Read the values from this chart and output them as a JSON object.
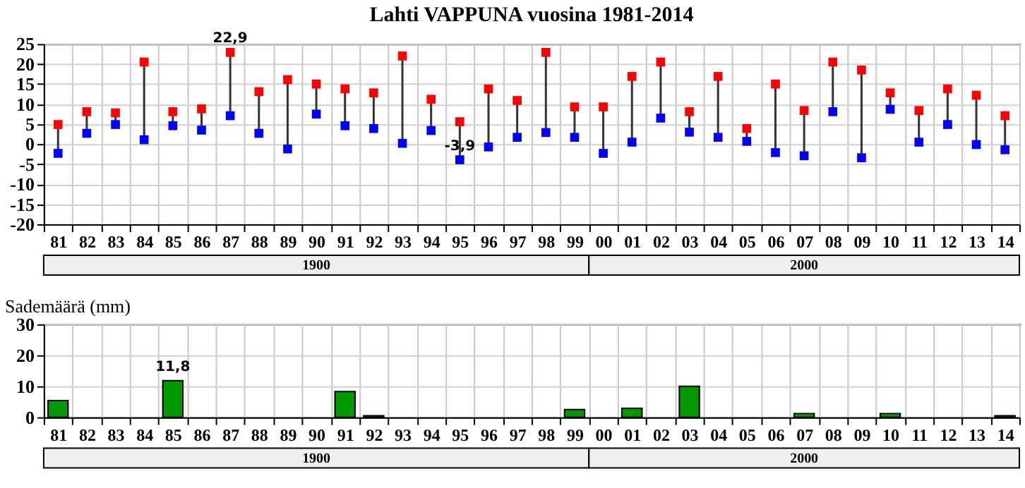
{
  "chart_data": [
    {
      "type": "scatter",
      "title": "Lahti VAPPUNA vuosina 1981-2014",
      "categories": [
        "81",
        "82",
        "83",
        "84",
        "85",
        "86",
        "87",
        "88",
        "89",
        "90",
        "91",
        "92",
        "93",
        "94",
        "95",
        "96",
        "97",
        "98",
        "99",
        "00",
        "01",
        "02",
        "03",
        "04",
        "05",
        "06",
        "07",
        "08",
        "09",
        "10",
        "11",
        "12",
        "13",
        "14"
      ],
      "series": [
        {
          "color": "#ff0000",
          "values": [
            4.9,
            8.1,
            7.8,
            20.5,
            8.1,
            8.8,
            22.9,
            13.1,
            16.1,
            15.0,
            13.8,
            12.8,
            22.0,
            11.2,
            5.6,
            13.8,
            10.9,
            22.9,
            9.3,
            9.3,
            16.9,
            20.5,
            8.1,
            16.9,
            3.9,
            15.0,
            8.4,
            20.5,
            18.5,
            12.8,
            8.4,
            13.8,
            12.2,
            7.1
          ]
        },
        {
          "color": "#0000ff",
          "values": [
            -2.3,
            2.7,
            4.9,
            1.1,
            4.6,
            3.5,
            7.1,
            2.7,
            -1.2,
            7.5,
            4.6,
            3.9,
            0.2,
            3.4,
            -3.9,
            -0.7,
            1.7,
            2.9,
            1.7,
            -2.3,
            0.5,
            6.5,
            3.0,
            1.7,
            0.7,
            -2.1,
            -2.9,
            8.1,
            -3.4,
            8.7,
            0.5,
            4.9,
            -0.1,
            -1.4
          ]
        }
      ],
      "marker": "square",
      "ylim": [
        -20,
        25
      ],
      "yticks": [
        -20,
        -15,
        -10,
        -5,
        0,
        5,
        10,
        15,
        20,
        25
      ],
      "grid": true,
      "annotations": [
        {
          "text": "22,9",
          "x": "87",
          "y": 22.9
        },
        {
          "text": "-3,9",
          "x": "95",
          "y": -3.9
        },
        "1900",
        "2000"
      ]
    },
    {
      "type": "bar",
      "ylabel": "Sademäärä (mm)",
      "categories": [
        "81",
        "82",
        "83",
        "84",
        "85",
        "86",
        "87",
        "88",
        "89",
        "90",
        "91",
        "92",
        "93",
        "94",
        "95",
        "96",
        "97",
        "98",
        "99",
        "00",
        "01",
        "02",
        "03",
        "04",
        "05",
        "06",
        "07",
        "08",
        "09",
        "10",
        "11",
        "12",
        "13",
        "14"
      ],
      "values": [
        5.4,
        null,
        null,
        null,
        11.8,
        null,
        null,
        null,
        null,
        null,
        8.3,
        0.5,
        null,
        null,
        null,
        null,
        null,
        null,
        2.5,
        null,
        2.9,
        null,
        10.0,
        null,
        null,
        null,
        1.2,
        null,
        null,
        1.2,
        null,
        null,
        null,
        0.5
      ],
      "color": "#009900",
      "ylim": [
        0,
        30
      ],
      "yticks": [
        0,
        10,
        20,
        30
      ],
      "grid": true,
      "annotations": [
        {
          "text": "11,8",
          "x": "85",
          "y": 11.8
        },
        "1900",
        "2000"
      ]
    }
  ]
}
